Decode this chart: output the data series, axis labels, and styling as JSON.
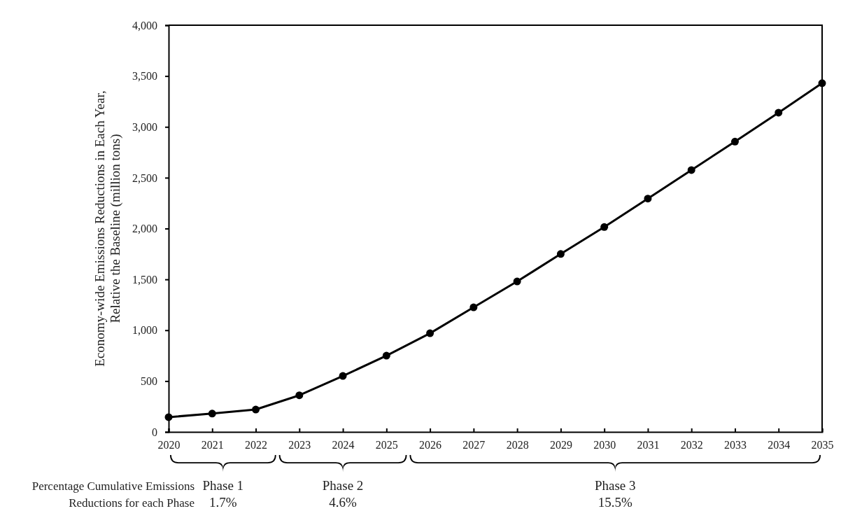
{
  "chart_data": {
    "type": "line",
    "ylabel": "Economy-wide Emissions Reductions in Each Year,\nRelative the Baseline (million tons)",
    "x": [
      2020,
      2021,
      2022,
      2023,
      2024,
      2025,
      2026,
      2027,
      2028,
      2029,
      2030,
      2031,
      2032,
      2033,
      2034,
      2035
    ],
    "series": [
      {
        "color": "#000000",
        "values": [
          145,
          180,
          220,
          360,
          550,
          750,
          970,
          1225,
          1480,
          1750,
          2015,
          2295,
          2575,
          2855,
          3140,
          3430
        ]
      }
    ],
    "xlim": [
      2020,
      2035
    ],
    "xticks": [
      2020,
      2021,
      2022,
      2023,
      2024,
      2025,
      2026,
      2027,
      2028,
      2029,
      2030,
      2031,
      2032,
      2033,
      2034,
      2035
    ],
    "ylim": [
      0,
      4000
    ],
    "yticks": [
      {
        "value": 0,
        "label": "0"
      },
      {
        "value": 500,
        "label": "500"
      },
      {
        "value": 1000,
        "label": "1,000"
      },
      {
        "value": 1500,
        "label": "1,500"
      },
      {
        "value": 2000,
        "label": "2,000"
      },
      {
        "value": 2500,
        "label": "2,500"
      },
      {
        "value": 3000,
        "label": "3,000"
      },
      {
        "value": 3500,
        "label": "3,500"
      },
      {
        "value": 4000,
        "label": "4,000"
      }
    ],
    "annotations": [
      "Percentage Cumulative Emissions\nReductions for each Phase",
      "Phase 1\n1.7%",
      "Phase 2\n4.6%",
      "Phase 3\n15.5%"
    ],
    "grid": false,
    "marker": "circle",
    "line_style": "solid"
  }
}
